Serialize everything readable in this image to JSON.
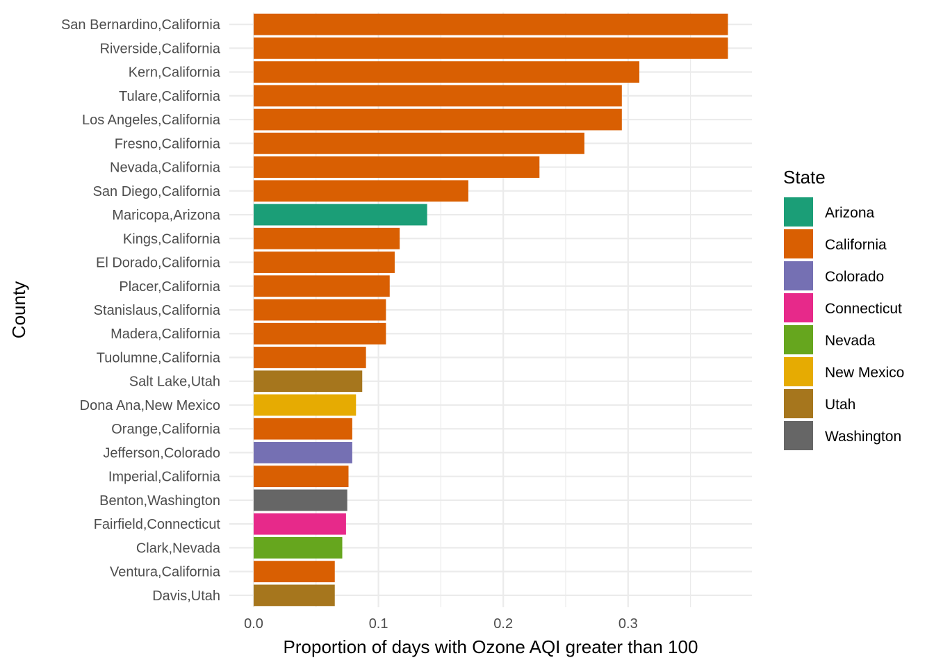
{
  "chart_data": {
    "type": "bar",
    "orientation": "horizontal",
    "xlabel": "Proportion of days with Ozone AQI greater than 100",
    "ylabel": "County",
    "xlim": [
      -0.02,
      0.399
    ],
    "x_ticks": [
      0.0,
      0.1,
      0.2,
      0.3
    ],
    "x_tick_labels": [
      "0.0",
      "0.1",
      "0.2",
      "0.3"
    ],
    "grid": true,
    "legend": {
      "title": "State",
      "placement": "right",
      "items": [
        {
          "label": "Arizona",
          "color": "#1b9e77"
        },
        {
          "label": "California",
          "color": "#d95f02"
        },
        {
          "label": "Colorado",
          "color": "#7570b3"
        },
        {
          "label": "Connecticut",
          "color": "#e7298a"
        },
        {
          "label": "Nevada",
          "color": "#66a61e"
        },
        {
          "label": "New Mexico",
          "color": "#e6ab02"
        },
        {
          "label": "Utah",
          "color": "#a6761d"
        },
        {
          "label": "Washington",
          "color": "#666666"
        }
      ]
    },
    "bars": [
      {
        "category": "San Bernardino,California",
        "state": "California",
        "value": 0.38
      },
      {
        "category": "Riverside,California",
        "state": "California",
        "value": 0.38
      },
      {
        "category": "Kern,California",
        "state": "California",
        "value": 0.309
      },
      {
        "category": "Tulare,California",
        "state": "California",
        "value": 0.295
      },
      {
        "category": "Los Angeles,California",
        "state": "California",
        "value": 0.295
      },
      {
        "category": "Fresno,California",
        "state": "California",
        "value": 0.265
      },
      {
        "category": "Nevada,California",
        "state": "California",
        "value": 0.229
      },
      {
        "category": "San Diego,California",
        "state": "California",
        "value": 0.172
      },
      {
        "category": "Maricopa,Arizona",
        "state": "Arizona",
        "value": 0.139
      },
      {
        "category": "Kings,California",
        "state": "California",
        "value": 0.117
      },
      {
        "category": "El Dorado,California",
        "state": "California",
        "value": 0.113
      },
      {
        "category": "Placer,California",
        "state": "California",
        "value": 0.109
      },
      {
        "category": "Stanislaus,California",
        "state": "California",
        "value": 0.106
      },
      {
        "category": "Madera,California",
        "state": "California",
        "value": 0.106
      },
      {
        "category": "Tuolumne,California",
        "state": "California",
        "value": 0.09
      },
      {
        "category": "Salt Lake,Utah",
        "state": "Utah",
        "value": 0.087
      },
      {
        "category": "Dona Ana,New Mexico",
        "state": "New Mexico",
        "value": 0.082
      },
      {
        "category": "Orange,California",
        "state": "California",
        "value": 0.079
      },
      {
        "category": "Jefferson,Colorado",
        "state": "Colorado",
        "value": 0.079
      },
      {
        "category": "Imperial,California",
        "state": "California",
        "value": 0.076
      },
      {
        "category": "Benton,Washington",
        "state": "Washington",
        "value": 0.075
      },
      {
        "category": "Fairfield,Connecticut",
        "state": "Connecticut",
        "value": 0.074
      },
      {
        "category": "Clark,Nevada",
        "state": "Nevada",
        "value": 0.071
      },
      {
        "category": "Ventura,California",
        "state": "California",
        "value": 0.065
      },
      {
        "category": "Davis,Utah",
        "state": "Utah",
        "value": 0.065
      }
    ]
  }
}
